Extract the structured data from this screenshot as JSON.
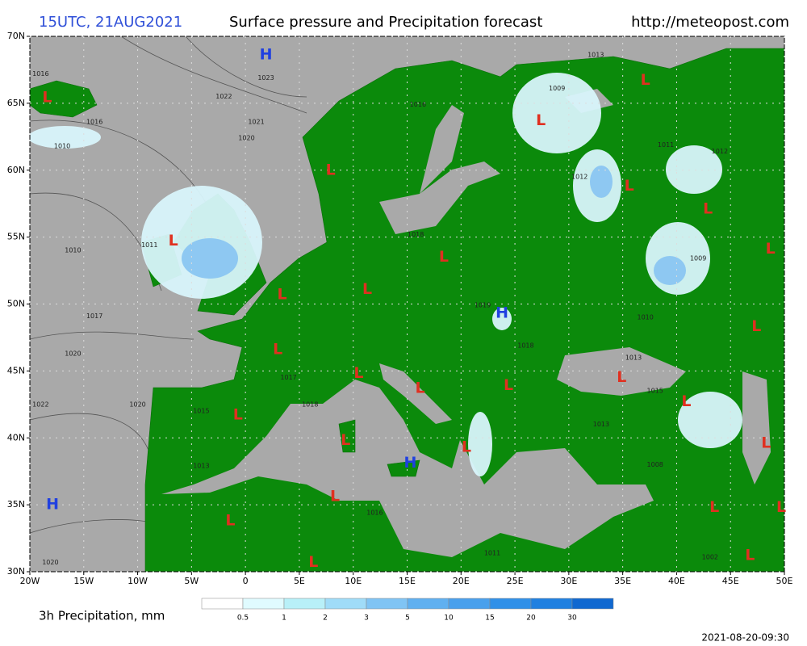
{
  "header": {
    "time": "15UTC, 21AUG2021",
    "title": "Surface pressure and Precipitation forecast",
    "url": "http://meteopost.com"
  },
  "map": {
    "lon_range": [
      -20,
      50
    ],
    "lat_range": [
      30,
      70
    ],
    "lon_ticks": [
      {
        "value": -20,
        "label": "20W"
      },
      {
        "value": -15,
        "label": "15W"
      },
      {
        "value": -10,
        "label": "10W"
      },
      {
        "value": -5,
        "label": "5W"
      },
      0,
      {
        "value": 5,
        "label": "5E"
      },
      {
        "value": 10,
        "label": "10E"
      },
      {
        "value": 15,
        "label": "15E"
      },
      {
        "value": 20,
        "label": "20E"
      },
      {
        "value": 25,
        "label": "25E"
      },
      {
        "value": 30,
        "label": "30E"
      },
      {
        "value": 35,
        "label": "35E"
      },
      {
        "value": 40,
        "label": "40E"
      },
      {
        "value": 45,
        "label": "45E"
      },
      {
        "value": 50,
        "label": "50E"
      }
    ],
    "lat_ticks": [
      {
        "value": 30,
        "label": "30N"
      },
      {
        "value": 35,
        "label": "35N"
      },
      {
        "value": 40,
        "label": "40N"
      },
      {
        "value": 45,
        "label": "45N"
      },
      {
        "value": 50,
        "label": "50N"
      },
      {
        "value": 55,
        "label": "55N"
      },
      {
        "value": 60,
        "label": "60N"
      },
      {
        "value": 65,
        "label": "65N"
      },
      {
        "value": 70,
        "label": "70N"
      }
    ],
    "grid": true,
    "high_color": "#2040e0",
    "low_color": "#e03020",
    "centers": [
      {
        "label": "H",
        "lon": 1.9,
        "lat": 68.6
      },
      {
        "label": "L",
        "lon": -18.4,
        "lat": 65.4
      },
      {
        "label": "L",
        "lon": 7.9,
        "lat": 60
      },
      {
        "label": "L",
        "lon": -6.7,
        "lat": 54.7
      },
      {
        "label": "L",
        "lon": 3.4,
        "lat": 50.7
      },
      {
        "label": "L",
        "lon": 11.3,
        "lat": 51.1
      },
      {
        "label": "L",
        "lon": 18.4,
        "lat": 53.5
      },
      {
        "label": "H",
        "lon": 23.8,
        "lat": 49.3
      },
      {
        "label": "L",
        "lon": 3.0,
        "lat": 46.6
      },
      {
        "label": "L",
        "lon": 10.5,
        "lat": 44.8
      },
      {
        "label": "L",
        "lon": 16.2,
        "lat": 43.7
      },
      {
        "label": "L",
        "lon": 24.4,
        "lat": 43.9
      },
      {
        "label": "L",
        "lon": -0.7,
        "lat": 41.7
      },
      {
        "label": "L",
        "lon": 9.3,
        "lat": 39.8
      },
      {
        "label": "H",
        "lon": 15.3,
        "lat": 38.1
      },
      {
        "label": "L",
        "lon": 20.5,
        "lat": 39.3
      },
      {
        "label": "L",
        "lon": 8.3,
        "lat": 35.6
      },
      {
        "label": "L",
        "lon": -1.4,
        "lat": 33.8
      },
      {
        "label": "L",
        "lon": 6.3,
        "lat": 30.7
      },
      {
        "label": "H",
        "lon": -17.9,
        "lat": 35
      },
      {
        "label": "L",
        "lon": 27.4,
        "lat": 63.7
      },
      {
        "label": "L",
        "lon": 37.1,
        "lat": 66.7
      },
      {
        "label": "L",
        "lon": 35.6,
        "lat": 58.8
      },
      {
        "label": "L",
        "lon": 42.9,
        "lat": 57.1
      },
      {
        "label": "L",
        "lon": 48.7,
        "lat": 54.1
      },
      {
        "label": "L",
        "lon": 47.4,
        "lat": 48.3
      },
      {
        "label": "L",
        "lon": 34.9,
        "lat": 44.5
      },
      {
        "label": "L",
        "lon": 40.9,
        "lat": 42.7
      },
      {
        "label": "L",
        "lon": 48.3,
        "lat": 39.6
      },
      {
        "label": "L",
        "lon": 43.5,
        "lat": 34.8
      },
      {
        "label": "L",
        "lon": 49.7,
        "lat": 34.8
      },
      {
        "label": "L",
        "lon": 46.8,
        "lat": 31.2
      }
    ],
    "isobar_labels": [
      {
        "value": 1023,
        "lon": 1.9,
        "lat": 66.9
      },
      {
        "value": 1022,
        "lon": -2.0,
        "lat": 65.5
      },
      {
        "value": 1021,
        "lon": 1.0,
        "lat": 63.6
      },
      {
        "value": 1020,
        "lon": 0.1,
        "lat": 62.4
      },
      {
        "value": 1016,
        "lon": -19.0,
        "lat": 67.2
      },
      {
        "value": 1016,
        "lon": -14.0,
        "lat": 63.6
      },
      {
        "value": 1010,
        "lon": -17.0,
        "lat": 61.8
      },
      {
        "value": 1011,
        "lon": -8.9,
        "lat": 54.4
      },
      {
        "value": 1010,
        "lon": -16.0,
        "lat": 54.0
      },
      {
        "value": 1017,
        "lon": -14.0,
        "lat": 49.1
      },
      {
        "value": 1020,
        "lon": -16.0,
        "lat": 46.3
      },
      {
        "value": 1022,
        "lon": -19.0,
        "lat": 42.5
      },
      {
        "value": 1020,
        "lon": -10.0,
        "lat": 42.5
      },
      {
        "value": 1015,
        "lon": -4.1,
        "lat": 42.0
      },
      {
        "value": 1013,
        "lon": -4.1,
        "lat": 37.9
      },
      {
        "value": 1020,
        "lon": -18.1,
        "lat": 30.7
      },
      {
        "value": 1018,
        "lon": 15.8,
        "lat": 55.2
      },
      {
        "value": 1016,
        "lon": 16.0,
        "lat": 64.9
      },
      {
        "value": 1013,
        "lon": 32.5,
        "lat": 68.6
      },
      {
        "value": 1009,
        "lon": 28.9,
        "lat": 66.1
      },
      {
        "value": 1011,
        "lon": 39.0,
        "lat": 61.9
      },
      {
        "value": 1012,
        "lon": 31.0,
        "lat": 59.5
      },
      {
        "value": 1012,
        "lon": 44.0,
        "lat": 61.4
      },
      {
        "value": 1009,
        "lon": 42.0,
        "lat": 53.4
      },
      {
        "value": 1010,
        "lon": 37.1,
        "lat": 49.0
      },
      {
        "value": 1013,
        "lon": 36.0,
        "lat": 46.0
      },
      {
        "value": 1015,
        "lon": 38.0,
        "lat": 43.5
      },
      {
        "value": 1013,
        "lon": 33.0,
        "lat": 41.0
      },
      {
        "value": 1008,
        "lon": 38.0,
        "lat": 38.0
      },
      {
        "value": 1002,
        "lon": 43.1,
        "lat": 31.1
      },
      {
        "value": 1011,
        "lon": 22.9,
        "lat": 31.4
      },
      {
        "value": 1016,
        "lon": 12.0,
        "lat": 34.4
      },
      {
        "value": 1017,
        "lon": 4.0,
        "lat": 44.5
      },
      {
        "value": 1018,
        "lon": 6.0,
        "lat": 42.5
      },
      {
        "value": 1019,
        "lon": 22.0,
        "lat": 49.9
      },
      {
        "value": 1018,
        "lon": 26.0,
        "lat": 46.9
      }
    ]
  },
  "legend": {
    "title": "3h Precipitation, mm",
    "levels": [
      0.5,
      1,
      2,
      3,
      5,
      10,
      15,
      20,
      30
    ],
    "colors": [
      "#ffffff",
      "#e0fbff",
      "#b8f0f8",
      "#a0dcf8",
      "#80c4f4",
      "#60b0f0",
      "#4aa0ec",
      "#3090e8",
      "#2080e0",
      "#1068d0"
    ]
  },
  "footer": {
    "issued": "2021-08-20-09:30"
  }
}
